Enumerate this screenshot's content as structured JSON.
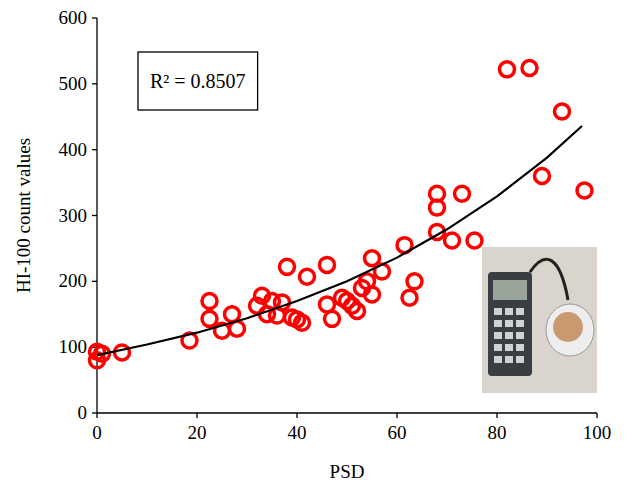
{
  "chart_data": {
    "type": "scatter",
    "x_label": "PSD",
    "y_label": "HI-100 count values",
    "annotation": "R² = 0.8507",
    "xlim": [
      0,
      100
    ],
    "ylim": [
      0,
      600
    ],
    "xticks": [
      0,
      20,
      40,
      60,
      80,
      100
    ],
    "yticks": [
      0,
      100,
      200,
      300,
      400,
      500,
      600
    ],
    "grid": false,
    "series": [
      {
        "type": "scatter",
        "color": "#ff0000",
        "marker": "circle",
        "x": [
          0,
          0,
          1,
          5,
          18.5,
          22.5,
          22.5,
          25,
          27,
          28,
          32,
          33,
          34,
          35,
          36,
          37,
          38,
          39,
          40,
          41,
          42,
          46,
          46,
          47,
          49,
          50,
          51,
          52,
          53,
          54,
          55,
          55,
          57,
          61.5,
          62.5,
          63.5,
          68,
          68,
          68,
          71,
          73,
          75.5,
          82,
          86.5,
          89,
          93,
          97.5
        ],
        "values": [
          80,
          93,
          90,
          92,
          110,
          170,
          143,
          125,
          150,
          128,
          163,
          178,
          150,
          170,
          148,
          168,
          222,
          145,
          142,
          137,
          207,
          225,
          165,
          143,
          175,
          170,
          163,
          155,
          190,
          200,
          180,
          235,
          215,
          255,
          175,
          200,
          333,
          312,
          275,
          262,
          333,
          262,
          522,
          524,
          360,
          458,
          338
        ]
      },
      {
        "type": "line",
        "color": "#000000",
        "line_style": "solid",
        "x": [
          0,
          10,
          20,
          30,
          40,
          50,
          60,
          70,
          80,
          90,
          97
        ],
        "values": [
          88,
          104,
          122,
          144,
          170,
          200,
          236,
          279,
          329,
          388,
          436
        ]
      }
    ]
  }
}
